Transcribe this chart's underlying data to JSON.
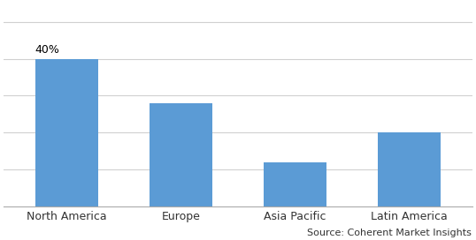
{
  "categories": [
    "North America",
    "Europe",
    "Asia Pacific",
    "Latin America"
  ],
  "values": [
    40,
    28,
    12,
    20
  ],
  "bar_color": "#5B9BD5",
  "annotation_label": "40%",
  "annotation_index": 0,
  "annotation_fontsize": 9,
  "source_text": "Source: Coherent Market Insights",
  "source_fontsize": 8,
  "ylim": [
    0,
    55
  ],
  "bar_width": 0.55,
  "background_color": "#ffffff",
  "grid_color": "#d0d0d0",
  "tick_fontsize": 9,
  "figsize": [
    5.38,
    2.72
  ],
  "dpi": 100,
  "grid_yticks": [
    10,
    20,
    30,
    40,
    50
  ]
}
